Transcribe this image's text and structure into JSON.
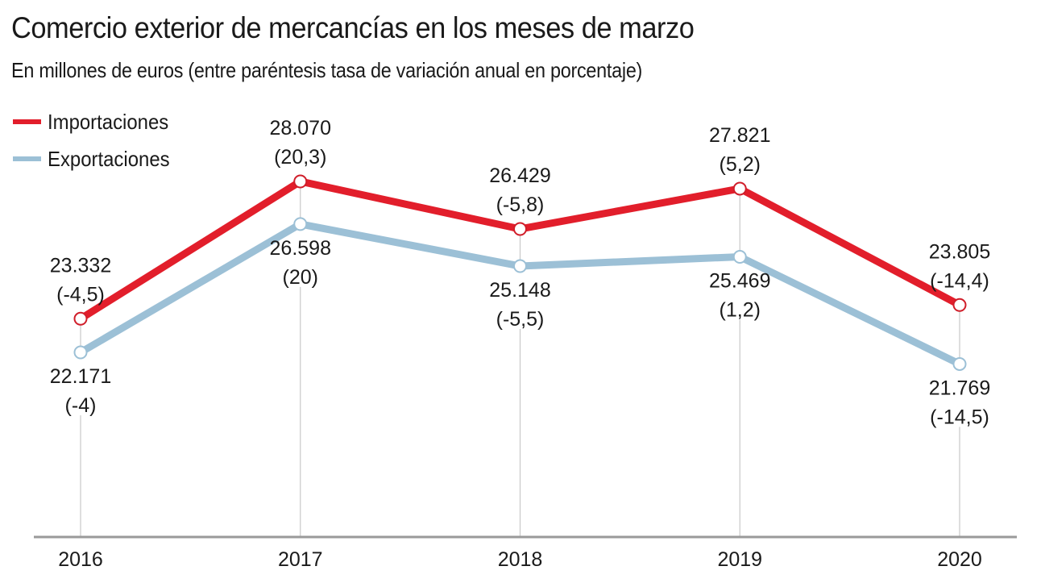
{
  "chart_data": {
    "type": "line",
    "title": "Comercio exterior de mercancías en los meses de marzo",
    "subtitle": "En millones de euros (entre paréntesis tasa de variación anual en porcentaje)",
    "xlabel": "",
    "ylabel": "",
    "categories": [
      "2016",
      "2017",
      "2018",
      "2019",
      "2020"
    ],
    "ylim": [
      15800,
      28070
    ],
    "grid": "vertical drop lines at each year",
    "legend_position": "top-left",
    "series": [
      {
        "name": "Importaciones",
        "color": "#e21e2b",
        "values": [
          23332,
          28070,
          26429,
          27821,
          23805
        ],
        "value_labels": [
          "23.332",
          "28.070",
          "26.429",
          "27.821",
          "23.805"
        ],
        "change_labels": [
          "(-4,5)",
          "(20,3)",
          "(-5,8)",
          "(5,2)",
          "(-14,4)"
        ],
        "label_position": "above"
      },
      {
        "name": "Exportaciones",
        "color": "#9cc0d6",
        "values": [
          22171,
          26598,
          25148,
          25469,
          21769
        ],
        "value_labels": [
          "22.171",
          "26.598",
          "25.148",
          "25.469",
          "21.769"
        ],
        "change_labels": [
          "(-4)",
          "(20)",
          "(-5,5)",
          "(1,2)",
          "(-14,5)"
        ],
        "label_position": "below"
      }
    ]
  }
}
